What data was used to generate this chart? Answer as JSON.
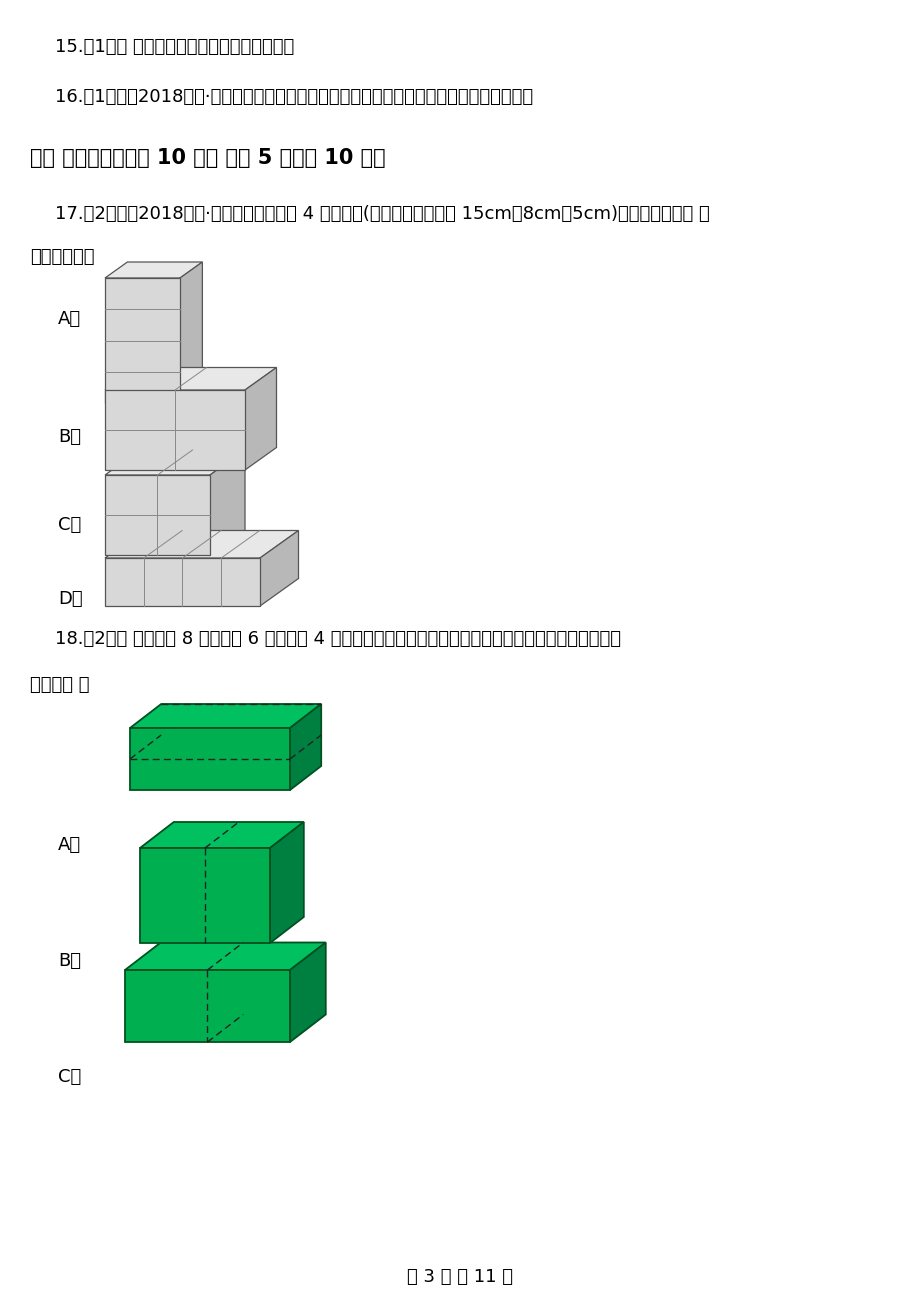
{
  "bg_color": "#ffffff",
  "line15": "15.（1分） 从折线统计图上看不出具体的数值",
  "line16": "16.（1分）（2018五下·深圳期末）如果两个长方体的表面积相等，那么它们的体积也相等。",
  "section3": "三、 精心选一选（共 10 分） （共 5 题；共 10 分）",
  "q17_line1": "17.（2分）（2018六下·深圳期末）淡气把 4 盒计算器(长、宽、高分别为 15cm、8cm、5cm)包成一包，（　 ）",
  "q17_line2": "最省包装纸。",
  "q18_line1": "18.（2分） 把一个长 8 厘米、宽 6 厘米、高 4 厘米的长方体，切成两个长方体，下图中增加表面积最多的切",
  "q18_line2": "法是（　 ）",
  "footer": "第 3 页 共 11 页",
  "label_A": "A．",
  "label_B": "B．",
  "label_C": "C．",
  "label_D": "D．"
}
